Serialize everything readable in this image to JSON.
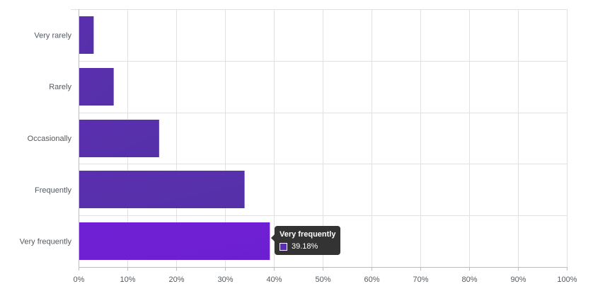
{
  "colors": {
    "bar": "#5a2fb0",
    "bar_highlight": "#6c1fd1",
    "grid": "#e1e1e1",
    "axis": "#bdbdbd",
    "text": "#555a5f",
    "tooltip_bg": "#333333"
  },
  "chart_data": {
    "type": "bar",
    "orientation": "horizontal",
    "categories": [
      "Very rarely",
      "Rarely",
      "Occasionally",
      "Frequently",
      "Very frequently"
    ],
    "values": [
      3.1,
      7.2,
      16.5,
      34.0,
      39.18
    ],
    "xlim": [
      0,
      100
    ],
    "xticks": [
      "0%",
      "10%",
      "20%",
      "30%",
      "40%",
      "50%",
      "60%",
      "70%",
      "80%",
      "90%",
      "100%"
    ],
    "grid": true,
    "highlighted_index": 4
  },
  "tooltip": {
    "title": "Very frequently",
    "value": "39.18%"
  }
}
